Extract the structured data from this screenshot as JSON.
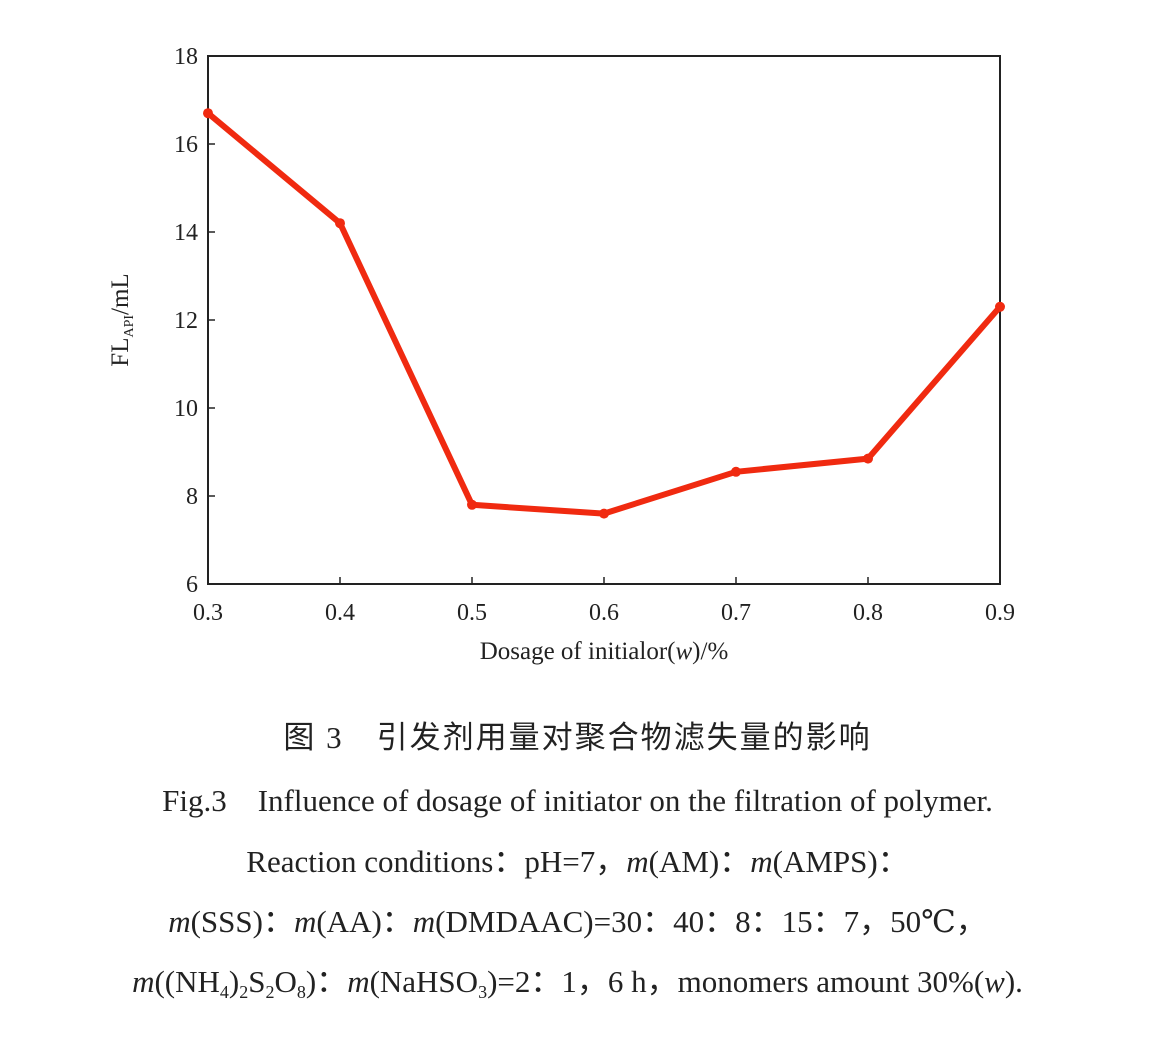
{
  "chart_data": {
    "type": "line",
    "xlabel": "Dosage of initialor(w)/%",
    "xlabel_parts": [
      {
        "t": "Dosage of initialor("
      },
      {
        "t": "w",
        "i": true
      },
      {
        "t": ")/%"
      }
    ],
    "ylabel": "FL_API/mL",
    "ylabel_parts": [
      {
        "t": "FL"
      },
      {
        "t": "API",
        "sub": true
      },
      {
        "t": "/mL"
      }
    ],
    "xlim": [
      0.3,
      0.9
    ],
    "ylim": [
      6,
      18
    ],
    "xticks": [
      "0.3",
      "0.4",
      "0.5",
      "0.6",
      "0.7",
      "0.8",
      "0.9"
    ],
    "yticks": [
      "6",
      "8",
      "10",
      "12",
      "14",
      "16",
      "18"
    ],
    "grid": false,
    "line_color": "#f02a10",
    "x": [
      0.3,
      0.4,
      0.5,
      0.6,
      0.7,
      0.8,
      0.9
    ],
    "y": [
      16.7,
      14.2,
      7.8,
      7.6,
      8.55,
      8.85,
      12.3
    ]
  },
  "caption": {
    "chinese": "图 3　引发剂用量对聚合物滤失量的影响",
    "english": "Fig.3　Influence of dosage of initiator on the filtration of polymer.",
    "lines": [
      [
        {
          "t": "Reaction conditions：pH=7，"
        },
        {
          "t": "m",
          "i": true
        },
        {
          "t": "(AM)："
        },
        {
          "t": "m",
          "i": true
        },
        {
          "t": "(AMPS)："
        }
      ],
      [
        {
          "t": "m",
          "i": true
        },
        {
          "t": "(SSS)："
        },
        {
          "t": "m",
          "i": true
        },
        {
          "t": "(AA)："
        },
        {
          "t": "m",
          "i": true
        },
        {
          "t": "(DMDAAC)=30：40：8：15：7，50℃，"
        }
      ],
      [
        {
          "t": "m",
          "i": true
        },
        {
          "t": "((NH"
        },
        {
          "t": "4",
          "sub": true
        },
        {
          "t": ")"
        },
        {
          "t": "2",
          "sub": true
        },
        {
          "t": "S"
        },
        {
          "t": "2",
          "sub": true
        },
        {
          "t": "O"
        },
        {
          "t": "8",
          "sub": true
        },
        {
          "t": ")："
        },
        {
          "t": "m",
          "i": true
        },
        {
          "t": "(NaHSO"
        },
        {
          "t": "3",
          "sub": true
        },
        {
          "t": ")=2：1，6 h，monomers amount 30%("
        },
        {
          "t": "w",
          "i": true
        },
        {
          "t": ")."
        }
      ]
    ]
  }
}
